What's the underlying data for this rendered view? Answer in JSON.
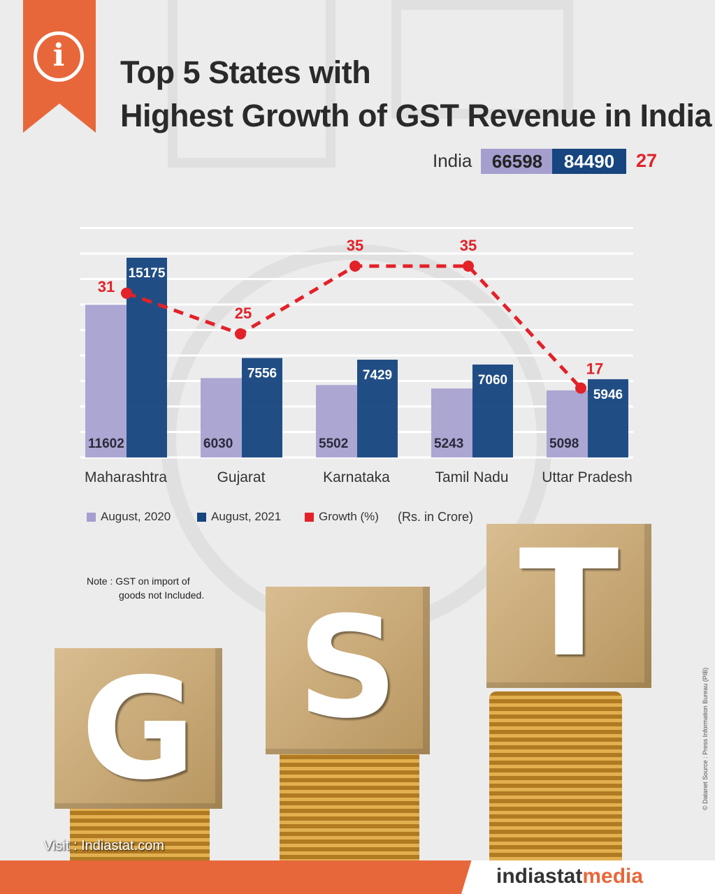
{
  "title_line1": "Top 5 States with",
  "title_line2": "Highest Growth of GST Revenue in India",
  "india": {
    "label": "India",
    "aug2020": "66598",
    "aug2021": "84490",
    "growth": "27"
  },
  "colors": {
    "aug2020": "#a59fcf",
    "aug2021": "#16457f",
    "growth": "#e32128",
    "accent": "#e8673a"
  },
  "chart_data": {
    "type": "bar",
    "title": "Top 5 States with Highest Growth of GST Revenue in India",
    "categories": [
      "Maharashtra",
      "Gujarat",
      "Karnataka",
      "Tamil Nadu",
      "Uttar Pradesh"
    ],
    "series": [
      {
        "name": "August, 2020",
        "type": "bar",
        "values": [
          11602,
          6030,
          5502,
          5243,
          5098
        ]
      },
      {
        "name": "August, 2021",
        "type": "bar",
        "values": [
          15175,
          7556,
          7429,
          7060,
          5946
        ]
      },
      {
        "name": "Growth (%)",
        "type": "line",
        "style": "dashed",
        "values": [
          31,
          25,
          35,
          35,
          17
        ]
      }
    ],
    "unit": "(Rs. in Crore)",
    "grid": true,
    "legend": "bottom"
  },
  "legend": {
    "s1": "August, 2020",
    "s2": "August, 2021",
    "s3": "Growth (%)",
    "unit": "(Rs. in Crore)"
  },
  "note_line1": "Note : GST on import of",
  "note_line2": "goods not Included.",
  "source": "© Datanet Source : Press Information Bureau (PIB)",
  "blocks": [
    "G",
    "S",
    "T"
  ],
  "visit": "Visit : Indiastat.com",
  "brand": {
    "a": "indiastat",
    "b": "media"
  }
}
